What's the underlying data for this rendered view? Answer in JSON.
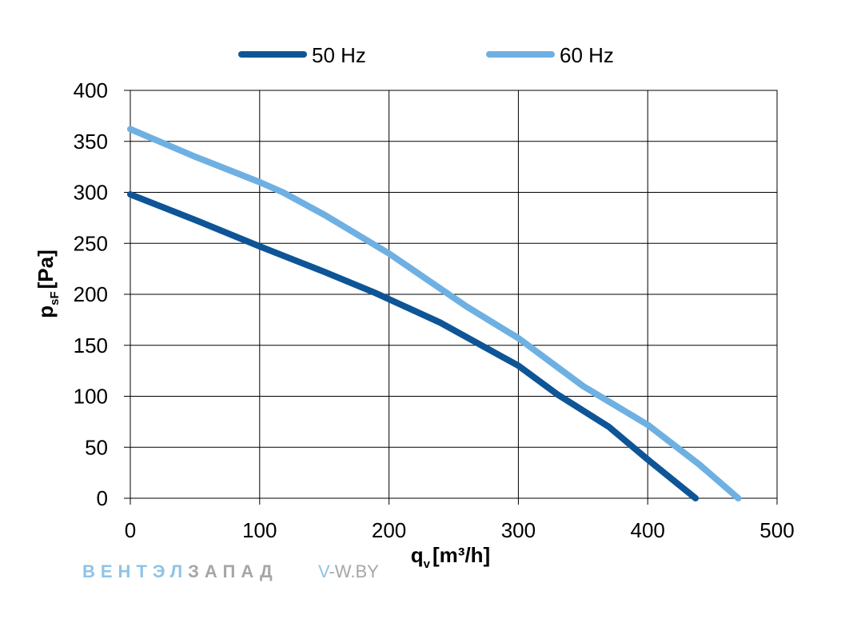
{
  "chart_data": {
    "type": "line",
    "title": "",
    "xlabel": {
      "main": "q",
      "sub": "v",
      "unit": "[m³/h]"
    },
    "ylabel": {
      "main": "p",
      "sub": "sF",
      "unit": "[Pa]"
    },
    "xlim": [
      0,
      500
    ],
    "ylim": [
      0,
      400
    ],
    "xticks": [
      0,
      100,
      200,
      300,
      400,
      500
    ],
    "yticks": [
      0,
      50,
      100,
      150,
      200,
      250,
      300,
      350,
      400
    ],
    "grid": true,
    "legend_position": "top",
    "series": [
      {
        "name": "50 Hz",
        "color": "#0d5596",
        "x": [
          0,
          50,
          100,
          150,
          190,
          240,
          300,
          330,
          370,
          400,
          437
        ],
        "y": [
          298,
          273,
          247,
          222,
          201,
          172,
          130,
          102,
          70,
          38,
          0
        ]
      },
      {
        "name": "60 Hz",
        "color": "#6fb0e2",
        "x": [
          0,
          50,
          100,
          118,
          150,
          200,
          260,
          300,
          350,
          400,
          440,
          470
        ],
        "y": [
          362,
          335,
          310,
          300,
          278,
          240,
          188,
          157,
          110,
          72,
          33,
          0
        ]
      }
    ]
  },
  "watermark": {
    "brand_blue": "ВЕНТЭЛ",
    "brand_gray": "ЗАПАД",
    "site_blue": "V",
    "site_gray": "-W.BY",
    "blue_color": "#8fc3e8",
    "gray_color": "#a6a6a6"
  }
}
